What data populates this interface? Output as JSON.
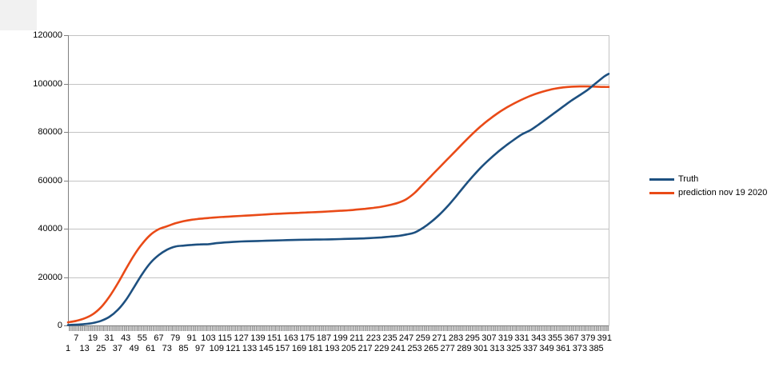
{
  "chart": {
    "legend": [
      {
        "label": "Truth",
        "color": "#1d5080"
      },
      {
        "label": "prediction nov 19 2020",
        "color": "#e94a17"
      }
    ],
    "colors": {
      "truth_line": "#1d5080",
      "prediction_line": "#e94a17",
      "gridline": "#c3c3c3",
      "axis": "#808080"
    }
  },
  "chart_data": {
    "type": "line",
    "title": "",
    "xlabel": "",
    "ylabel": "",
    "grid": true,
    "legend_position": "right",
    "ylim": [
      0,
      120000
    ],
    "xlim": [
      1,
      394
    ],
    "y_ticks": [
      0,
      20000,
      40000,
      60000,
      80000,
      100000,
      120000
    ],
    "x_tick_labels": [
      1,
      7,
      13,
      19,
      25,
      31,
      37,
      43,
      49,
      55,
      61,
      67,
      73,
      79,
      85,
      91,
      97,
      103,
      109,
      115,
      121,
      127,
      133,
      139,
      145,
      151,
      157,
      163,
      169,
      175,
      181,
      187,
      193,
      199,
      205,
      211,
      217,
      223,
      229,
      235,
      241,
      247,
      253,
      259,
      265,
      271,
      277,
      283,
      289,
      295,
      301,
      307,
      313,
      319,
      325,
      331,
      337,
      343,
      349,
      355,
      361,
      367,
      373,
      379,
      385,
      391
    ],
    "x": [
      1,
      7,
      13,
      19,
      25,
      31,
      37,
      43,
      49,
      55,
      61,
      67,
      73,
      79,
      85,
      91,
      97,
      103,
      109,
      115,
      121,
      127,
      133,
      139,
      145,
      151,
      157,
      163,
      169,
      175,
      181,
      187,
      193,
      199,
      205,
      211,
      217,
      223,
      229,
      235,
      241,
      247,
      253,
      259,
      265,
      271,
      277,
      283,
      289,
      295,
      301,
      307,
      313,
      319,
      325,
      331,
      337,
      343,
      349,
      355,
      361,
      367,
      373,
      379,
      385,
      391,
      394
    ],
    "series": [
      {
        "name": "Truth",
        "color": "#1d5080",
        "values": [
          150,
          300,
          550,
          1000,
          1900,
          3500,
          6300,
          10400,
          15800,
          21300,
          25900,
          29100,
          31300,
          32600,
          33000,
          33300,
          33500,
          33600,
          34000,
          34300,
          34500,
          34700,
          34800,
          34900,
          35000,
          35100,
          35200,
          35300,
          35400,
          35450,
          35500,
          35550,
          35600,
          35700,
          35800,
          35900,
          36000,
          36200,
          36400,
          36700,
          37000,
          37600,
          38400,
          40300,
          42800,
          45800,
          49300,
          53300,
          57500,
          61500,
          65200,
          68500,
          71500,
          74200,
          76700,
          79000,
          80700,
          83000,
          85500,
          88000,
          90500,
          93000,
          95200,
          97500,
          100300,
          103000,
          104000
        ]
      },
      {
        "name": "prediction nov 19 2020",
        "color": "#e94a17",
        "values": [
          1300,
          1900,
          2900,
          4600,
          7500,
          11800,
          17200,
          23200,
          29000,
          33800,
          37500,
          39800,
          41000,
          42200,
          43100,
          43700,
          44100,
          44400,
          44700,
          44900,
          45100,
          45300,
          45500,
          45700,
          45900,
          46100,
          46250,
          46400,
          46550,
          46700,
          46850,
          47000,
          47200,
          47400,
          47600,
          47900,
          48200,
          48600,
          49100,
          49800,
          50700,
          52200,
          54800,
          58300,
          61800,
          65300,
          68800,
          72300,
          75800,
          79200,
          82300,
          85100,
          87600,
          89800,
          91700,
          93400,
          94900,
          96100,
          97100,
          97900,
          98400,
          98700,
          98800,
          98800,
          98700,
          98600,
          98600
        ]
      }
    ]
  }
}
